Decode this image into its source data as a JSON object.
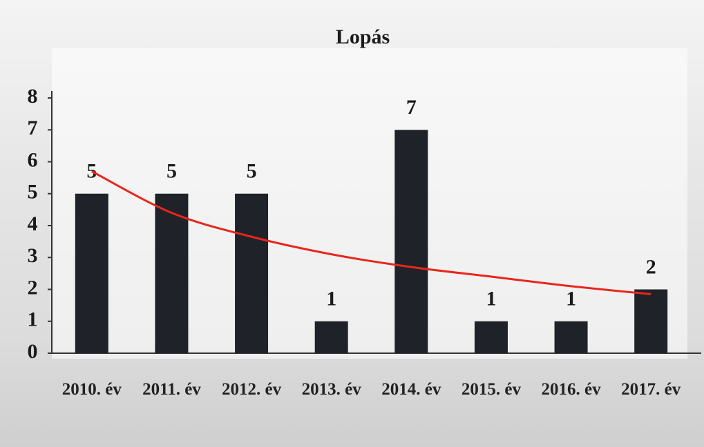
{
  "chart_data": {
    "type": "bar",
    "title": "Lopás",
    "categories": [
      "2010. év",
      "2011. év",
      "2012. év",
      "2013. év",
      "2014. év",
      "2015. év",
      "2016. év",
      "2017. év"
    ],
    "values": [
      5,
      5,
      5,
      1,
      7,
      1,
      1,
      2
    ],
    "color": "#1f2329",
    "ylim": [
      0,
      8
    ],
    "yticks": [
      0,
      1,
      2,
      3,
      4,
      5,
      6,
      7,
      8
    ],
    "data_labels": true,
    "trendline": {
      "color": "#e8261c",
      "values": [
        5.7,
        4.4,
        3.65,
        3.1,
        2.7,
        2.4,
        2.1,
        1.85
      ]
    }
  }
}
